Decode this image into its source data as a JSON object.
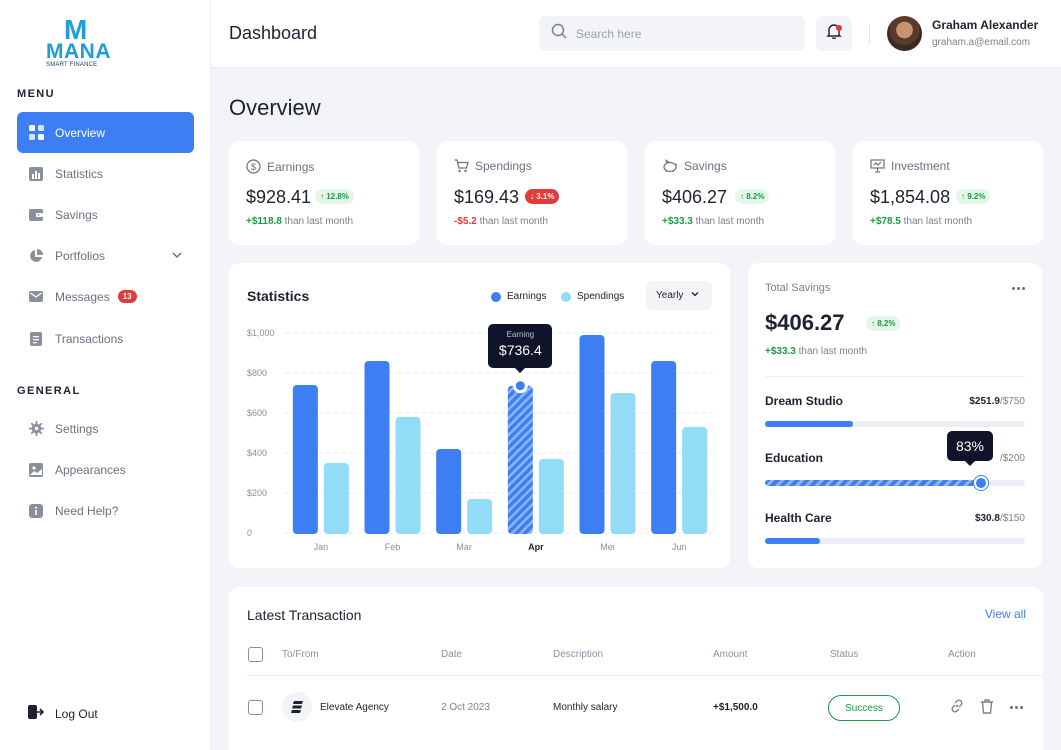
{
  "brand": {
    "logo_mark": "M",
    "logo_word": "MANA",
    "tagline": "SMART FINANCE"
  },
  "sidebar": {
    "menu_label": "MENU",
    "general_label": "GENERAL",
    "menu_items": [
      {
        "label": "Overview",
        "icon": "grid-icon",
        "active": true
      },
      {
        "label": "Statistics",
        "icon": "bar-chart-icon"
      },
      {
        "label": "Savings",
        "icon": "wallet-icon"
      },
      {
        "label": "Portfolios",
        "icon": "pie-chart-icon"
      },
      {
        "label": "Messages",
        "icon": "mail-icon",
        "badge": "13"
      },
      {
        "label": "Transactions",
        "icon": "document-icon"
      }
    ],
    "general_items": [
      {
        "label": "Settings",
        "icon": "gear-icon"
      },
      {
        "label": "Appearances",
        "icon": "image-icon"
      },
      {
        "label": "Need Help?",
        "icon": "info-icon"
      }
    ],
    "logout_label": "Log Out"
  },
  "header": {
    "title": "Dashboard",
    "search_placeholder": "Search here",
    "user_name": "Graham Alexander",
    "user_email": "graham.a@email.com"
  },
  "overview_title": "Overview",
  "stats": [
    {
      "label": "Earnings",
      "icon": "dollar-circle-icon",
      "value": "$928.41",
      "change": "12.8%",
      "direction": "up",
      "delta": "+$118.8",
      "suffix": "than last month"
    },
    {
      "label": "Spendings",
      "icon": "cart-icon",
      "value": "$169.43",
      "change": "3.1%",
      "direction": "down",
      "delta": "-$5.2",
      "suffix": "than last month"
    },
    {
      "label": "Savings",
      "icon": "piggy-bank-icon",
      "value": "$406.27",
      "change": "8.2%",
      "direction": "up",
      "delta": "+$33.3",
      "suffix": "than last month"
    },
    {
      "label": "Investment",
      "icon": "presentation-icon",
      "value": "$1,854.08",
      "change": "9.2%",
      "direction": "up",
      "delta": "+$78.5",
      "suffix": "than last month"
    }
  ],
  "statistics": {
    "title": "Statistics",
    "period": "Yearly",
    "tooltip_label": "Earning",
    "tooltip_value": "$736.4"
  },
  "chart_data": {
    "type": "bar",
    "categories": [
      "Jan",
      "Feb",
      "Mar",
      "Apr",
      "Mei",
      "Jun"
    ],
    "highlight_category": "Apr",
    "series": [
      {
        "name": "Earnings",
        "color": "#3d7ff2",
        "values": [
          740,
          860,
          420,
          736.4,
          990,
          860
        ]
      },
      {
        "name": "Spendings",
        "color": "#93dcf8",
        "values": [
          350,
          580,
          170,
          370,
          700,
          530
        ]
      }
    ],
    "y_ticks": [
      "0",
      "$200",
      "$400",
      "$600",
      "$800",
      "$1,000"
    ],
    "ylim": [
      0,
      1000
    ],
    "grid": true,
    "legend_position": "top-right"
  },
  "total_savings": {
    "label": "Total Savings",
    "value": "$406.27",
    "change": "8.2%",
    "delta": "+$33.3",
    "suffix": "than last month",
    "goals": [
      {
        "name": "Dream Studio",
        "saved": "$251.9",
        "target": "/$750",
        "progress": 0.34
      },
      {
        "name": "Education",
        "saved": "",
        "target": "/$200",
        "progress": 0.83,
        "tooltip": "83%"
      },
      {
        "name": "Health Care",
        "saved": "$30.8",
        "target": "/$150",
        "progress": 0.21
      }
    ]
  },
  "transactions": {
    "title": "Latest Transaction",
    "view_all": "View all",
    "columns": [
      "To/From",
      "Date",
      "Description",
      "Amount",
      "Status",
      "Action"
    ],
    "rows": [
      {
        "to_from": "Elevate Agency",
        "date": "2 Oct 2023",
        "description": "Monthly salary",
        "amount": "+$1,500.0",
        "status": "Success"
      }
    ]
  },
  "colors": {
    "accent": "#3d7ff2",
    "positive": "#1d9a45",
    "negative": "#e53a3a",
    "light_bar": "#93dcf8"
  }
}
